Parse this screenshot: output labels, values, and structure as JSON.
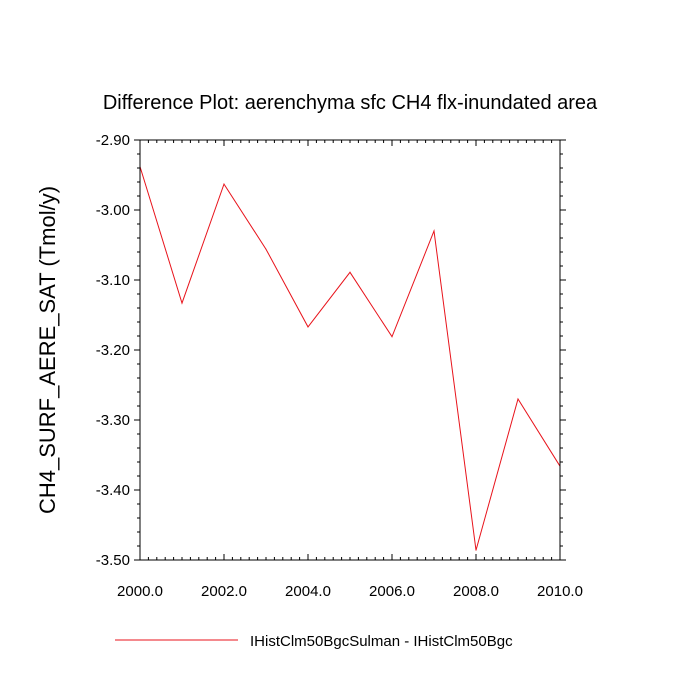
{
  "chart_data": {
    "type": "line",
    "title": "Difference Plot: aerenchyma sfc CH4 flx-inundated area",
    "xlabel": "",
    "ylabel": "CH4_SURF_AERE_SAT  (Tmol/y)",
    "xlim": [
      2000,
      2010
    ],
    "ylim": [
      -3.5,
      -2.9
    ],
    "x_ticks": [
      2000,
      2002,
      2004,
      2006,
      2008,
      2010
    ],
    "x_tick_labels": [
      "2000.0",
      "2002.0",
      "2004.0",
      "2006.0",
      "2008.0",
      "2010.0"
    ],
    "y_ticks": [
      -2.9,
      -3.0,
      -3.1,
      -3.2,
      -3.3,
      -3.4,
      -3.5
    ],
    "y_tick_labels": [
      "-2.90",
      "-3.00",
      "-3.10",
      "-3.20",
      "-3.30",
      "-3.40",
      "-3.50"
    ],
    "grid": false,
    "legend_position": "bottom",
    "series": [
      {
        "name": "IHistClm50BgcSulman - IHistClm50Bgc",
        "color": "#e8131b",
        "x": [
          2000,
          2001,
          2002,
          2003,
          2004,
          2005,
          2006,
          2007,
          2008,
          2009,
          2010
        ],
        "values": [
          -2.938,
          -3.133,
          -2.963,
          -3.056,
          -3.167,
          -3.089,
          -3.181,
          -3.03,
          -3.486,
          -3.27,
          -3.366
        ]
      }
    ]
  }
}
